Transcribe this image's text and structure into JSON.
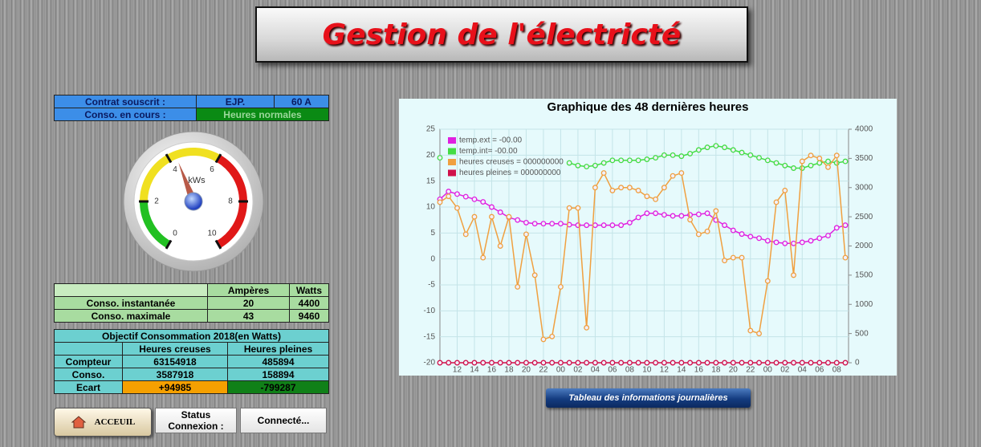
{
  "title": "Gestion de l'électricté",
  "contract": {
    "rows": [
      [
        "Contrat souscrit :",
        "EJP.",
        "60 A"
      ],
      [
        "Conso. en cours :",
        "Heures normales"
      ]
    ]
  },
  "gauge": {
    "min": 0,
    "max": 10,
    "ticks": [
      0,
      2,
      4,
      6,
      8,
      10
    ],
    "unit": "kWs",
    "value": 4.3,
    "bands": [
      {
        "from": 0,
        "to": 2,
        "color": "#22c022"
      },
      {
        "from": 2,
        "to": 6,
        "color": "#f0e020"
      },
      {
        "from": 6,
        "to": 10,
        "color": "#e01818"
      }
    ]
  },
  "consumption": {
    "header": [
      "Ampères",
      "Watts"
    ],
    "rows": [
      [
        "Conso. instantanée",
        20,
        4400
      ],
      [
        "Conso. maximale",
        43,
        9460
      ]
    ]
  },
  "objective": {
    "title": "Objectif Consommation 2018(en Watts)",
    "header": [
      "Heures creuses",
      "Heures pleines"
    ],
    "rows": [
      [
        "Compteur",
        63154918,
        485894
      ],
      [
        "Conso.",
        3587918,
        158894
      ],
      [
        "Ecart",
        "+94985",
        -799287
      ]
    ]
  },
  "buttons": {
    "home": "ACCEUIL",
    "status_label": "Status Connexion :",
    "status": "Connecté...",
    "daily": "Tableau des informations journalières"
  },
  "chart_data": {
    "type": "line",
    "title": "Graphique des 48 dernières heures",
    "categories": [
      null,
      null,
      "12",
      null,
      "14",
      null,
      "16",
      null,
      "18",
      null,
      "20",
      null,
      "22",
      null,
      "00",
      null,
      "02",
      null,
      "04",
      null,
      "06",
      null,
      "08",
      null,
      "10",
      null,
      "12",
      null,
      "14",
      null,
      "16",
      null,
      "18",
      null,
      "20",
      null,
      "22",
      null,
      "00",
      null,
      "02",
      null,
      "04",
      null,
      "06",
      null,
      "08",
      null
    ],
    "ylim": [
      -20,
      25
    ],
    "yticks": [
      -20,
      -15,
      -10,
      -5,
      0,
      5,
      10,
      15,
      20,
      25
    ],
    "y2lim": [
      0,
      4000
    ],
    "y2ticks": [
      0,
      500,
      1000,
      1500,
      2000,
      2500,
      3000,
      3500,
      4000
    ],
    "grid": true,
    "legend": "upper left",
    "series": [
      {
        "name": "temp.ext = -00.00",
        "color": "#e020e0",
        "axis": "y",
        "values": [
          11.5,
          13,
          12.5,
          12,
          11.5,
          11,
          10,
          9,
          8,
          7.5,
          7,
          6.8,
          6.8,
          6.8,
          6.8,
          6.6,
          6.5,
          6.5,
          6.5,
          6.5,
          6.5,
          6.5,
          7,
          8,
          8.8,
          8.8,
          8.5,
          8.3,
          8.3,
          8.5,
          8.6,
          8.8,
          7.5,
          6.5,
          5.5,
          4.8,
          4.3,
          4,
          3.5,
          3.2,
          3,
          3,
          3.2,
          3.5,
          4,
          4.5,
          6,
          6.5
        ]
      },
      {
        "name": "temp.int= -00.00",
        "color": "#44dd44",
        "axis": "y",
        "values": [
          19.5,
          null,
          null,
          null,
          null,
          null,
          null,
          null,
          null,
          null,
          null,
          null,
          null,
          null,
          null,
          18.5,
          18,
          17.8,
          18,
          18.5,
          19,
          19,
          19,
          19,
          19.2,
          19.5,
          20,
          20,
          19.8,
          20.3,
          21,
          21.5,
          21.8,
          21.5,
          21,
          20.5,
          20,
          19.5,
          19,
          18.5,
          18,
          17.5,
          17.5,
          18,
          18.5,
          18.8,
          18.5,
          18.8
        ]
      },
      {
        "name": "heures creuses = 000000000",
        "color": "#f0a040",
        "axis": "y2",
        "values": [
          2750,
          2850,
          2650,
          2200,
          2500,
          1800,
          2500,
          2000,
          2500,
          1300,
          2200,
          1500,
          400,
          450,
          1300,
          2650,
          2650,
          600,
          3000,
          3250,
          2950,
          3000,
          3000,
          2950,
          2850,
          2800,
          3000,
          3200,
          3250,
          2450,
          2200,
          2250,
          2600,
          1750,
          1800,
          1800,
          550,
          500,
          1400,
          2750,
          2950,
          1500,
          3450,
          3550,
          3500,
          3350,
          3550,
          1800
        ]
      },
      {
        "name": "heures pleines = 000000000",
        "color": "#d0104a",
        "axis": "y2",
        "values": [
          0,
          0,
          0,
          0,
          0,
          0,
          0,
          0,
          0,
          0,
          0,
          0,
          0,
          0,
          0,
          0,
          0,
          0,
          0,
          0,
          0,
          0,
          0,
          0,
          0,
          0,
          0,
          0,
          0,
          0,
          0,
          0,
          0,
          0,
          0,
          0,
          0,
          0,
          0,
          0,
          0,
          0,
          0,
          0,
          0,
          0,
          0,
          0
        ]
      }
    ]
  }
}
